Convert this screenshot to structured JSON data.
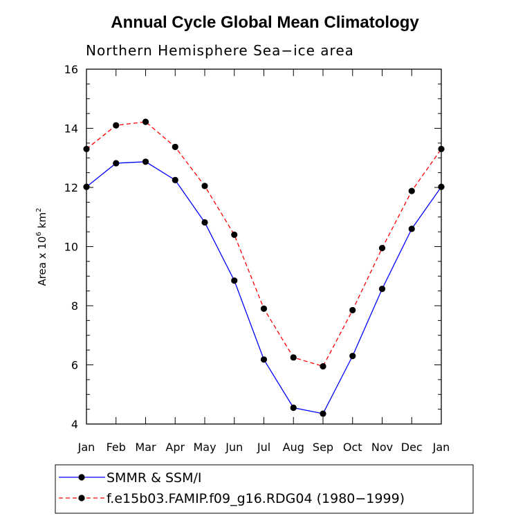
{
  "chart_data": {
    "type": "line",
    "title": "Annual Cycle Global Mean Climatology",
    "subtitle": "Northern Hemisphere Sea−ice area",
    "ylabel_main": "Area x 10",
    "ylabel_exp": "6",
    "ylabel_unit": "km",
    "ylabel_unit_exp": "2",
    "xlabel": "",
    "categories": [
      "Jan",
      "Feb",
      "Mar",
      "Apr",
      "May",
      "Jun",
      "Jul",
      "Aug",
      "Sep",
      "Oct",
      "Nov",
      "Dec",
      "Jan"
    ],
    "ylim": [
      4,
      16
    ],
    "yticks": [
      4,
      6,
      8,
      10,
      12,
      14,
      16
    ],
    "grid": false,
    "legend_position": "bottom",
    "series": [
      {
        "name": "SMMR & SSM/I",
        "color": "#0000ff",
        "dash": "solid",
        "values": [
          12.02,
          12.82,
          12.87,
          12.25,
          10.82,
          8.85,
          6.18,
          4.55,
          4.35,
          6.3,
          8.57,
          10.6,
          12.02
        ]
      },
      {
        "name": "f.e15b03.FAMIP.f09_g16.RDG04 (1980−1999)",
        "color": "#ff0000",
        "dash": "dashed",
        "values": [
          13.3,
          14.1,
          14.22,
          13.37,
          12.05,
          10.4,
          7.9,
          6.25,
          5.95,
          7.85,
          9.95,
          11.88,
          13.3
        ]
      }
    ]
  }
}
